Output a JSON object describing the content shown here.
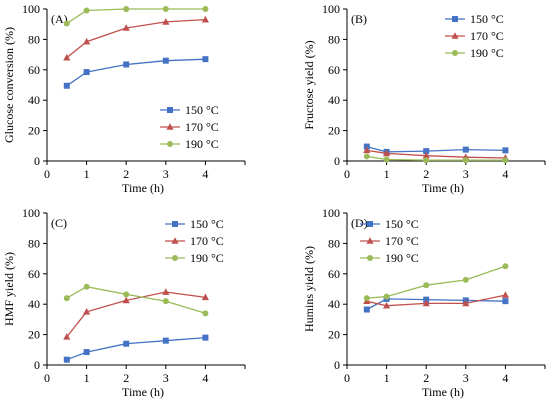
{
  "colors": {
    "s150": "#4472C4",
    "s170": "#C0504D",
    "s190": "#9BBB59",
    "axis": "#000000"
  },
  "chart_data": [
    {
      "type": "line",
      "panel_label": "(A)",
      "xlabel": "Time (h)",
      "ylabel": "Glucose conversion (%)",
      "xlim": [
        0,
        5
      ],
      "ylim": [
        0,
        100
      ],
      "xticks": [
        "0",
        "1",
        "2",
        "3",
        "4"
      ],
      "yticks": [
        "0",
        "20",
        "40",
        "60",
        "80",
        "100"
      ],
      "legend_position": "bottom-right",
      "x": [
        0.5,
        1,
        2,
        3,
        4
      ],
      "series": [
        {
          "name": "150 °C",
          "marker": "square",
          "color": "#4472C4",
          "values": [
            49.5,
            58.5,
            63.5,
            66,
            67
          ]
        },
        {
          "name": "170 °C",
          "marker": "triangle",
          "color": "#C0504D",
          "values": [
            68,
            78.5,
            87.5,
            91.5,
            93
          ]
        },
        {
          "name": "190 °C",
          "marker": "circle",
          "color": "#9BBB59",
          "values": [
            90.5,
            99,
            100,
            100,
            100
          ]
        }
      ]
    },
    {
      "type": "line",
      "panel_label": "(B)",
      "xlabel": "Time (h)",
      "ylabel": "Fructose yield (%)",
      "xlim": [
        0,
        5
      ],
      "ylim": [
        0,
        100
      ],
      "xticks": [
        "0",
        "1",
        "2",
        "3",
        "4"
      ],
      "yticks": [
        "0",
        "20",
        "40",
        "60",
        "80",
        "100"
      ],
      "legend_position": "top-right",
      "x": [
        0.5,
        1,
        2,
        3,
        4
      ],
      "series": [
        {
          "name": "150 °C",
          "marker": "square",
          "color": "#4472C4",
          "values": [
            9.5,
            6,
            6.5,
            7.5,
            7
          ]
        },
        {
          "name": "170 °C",
          "marker": "triangle",
          "color": "#C0504D",
          "values": [
            7,
            5,
            3.5,
            2.5,
            2
          ]
        },
        {
          "name": "190 °C",
          "marker": "circle",
          "color": "#9BBB59",
          "values": [
            3,
            1,
            0.5,
            0.5,
            0.5
          ]
        }
      ]
    },
    {
      "type": "line",
      "panel_label": "(C)",
      "xlabel": "Time (h)",
      "ylabel": "HMF yield (%)",
      "xlim": [
        0,
        5
      ],
      "ylim": [
        0,
        100
      ],
      "xticks": [
        "0",
        "1",
        "2",
        "3",
        "4"
      ],
      "yticks": [
        "0",
        "20",
        "40",
        "60",
        "80",
        "100"
      ],
      "legend_position": "top-right",
      "x": [
        0.5,
        1,
        2,
        3,
        4
      ],
      "series": [
        {
          "name": "150 °C",
          "marker": "square",
          "color": "#4472C4",
          "values": [
            3.5,
            8.5,
            14,
            16,
            18
          ]
        },
        {
          "name": "170 °C",
          "marker": "triangle",
          "color": "#C0504D",
          "values": [
            18.5,
            35,
            42.5,
            48,
            44.5
          ]
        },
        {
          "name": "190 °C",
          "marker": "circle",
          "color": "#9BBB59",
          "values": [
            44,
            51.5,
            46.5,
            42,
            34
          ]
        }
      ]
    },
    {
      "type": "line",
      "panel_label": "(D)",
      "xlabel": "Time (h)",
      "ylabel": "Humins yield (%)",
      "xlim": [
        0,
        5
      ],
      "ylim": [
        0,
        100
      ],
      "xticks": [
        "0",
        "1",
        "2",
        "3",
        "4"
      ],
      "yticks": [
        "0",
        "20",
        "40",
        "60",
        "80",
        "100"
      ],
      "legend_position": "top-left",
      "x": [
        0.5,
        1,
        2,
        3,
        4
      ],
      "series": [
        {
          "name": "150 °C",
          "marker": "square",
          "color": "#4472C4",
          "values": [
            36.5,
            43.5,
            43,
            42.5,
            42
          ]
        },
        {
          "name": "170 °C",
          "marker": "triangle",
          "color": "#C0504D",
          "values": [
            42,
            39,
            40.5,
            40.5,
            46
          ]
        },
        {
          "name": "190 °C",
          "marker": "circle",
          "color": "#9BBB59",
          "values": [
            44,
            45,
            52.5,
            56,
            65
          ]
        }
      ]
    }
  ]
}
